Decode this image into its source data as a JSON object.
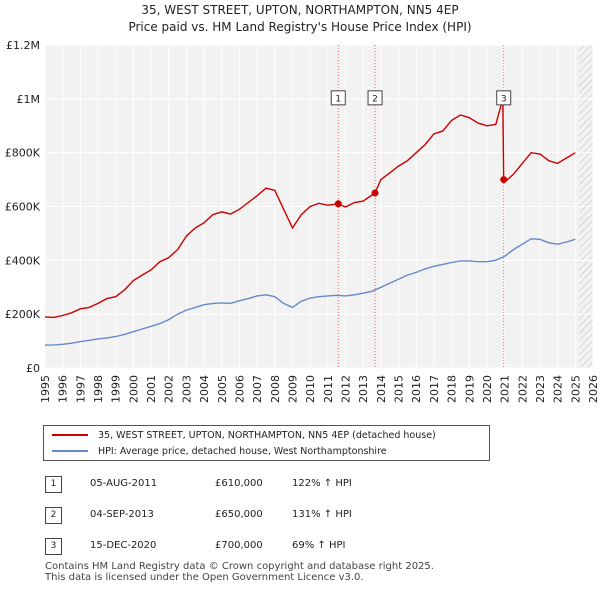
{
  "chart_data": {
    "type": "line",
    "title": "35, WEST STREET, UPTON, NORTHAMPTON, NN5 4EP",
    "subtitle": "Price paid vs. HM Land Registry's House Price Index (HPI)",
    "xlabel": "",
    "ylabel": "",
    "xlim": [
      1995,
      2026
    ],
    "ylim": [
      0,
      1200000
    ],
    "y_ticks": [
      {
        "value": 0,
        "label": "£0"
      },
      {
        "value": 200000,
        "label": "£200K"
      },
      {
        "value": 400000,
        "label": "£400K"
      },
      {
        "value": 600000,
        "label": "£600K"
      },
      {
        "value": 800000,
        "label": "£800K"
      },
      {
        "value": 1000000,
        "label": "£1M"
      },
      {
        "value": 1200000,
        "label": "£1.2M"
      }
    ],
    "x_ticks": [
      "1995",
      "1996",
      "1997",
      "1998",
      "1999",
      "2000",
      "2001",
      "2002",
      "2003",
      "2004",
      "2005",
      "2006",
      "2007",
      "2008",
      "2009",
      "2010",
      "2011",
      "2012",
      "2013",
      "2014",
      "2015",
      "2016",
      "2017",
      "2018",
      "2019",
      "2020",
      "2021",
      "2022",
      "2023",
      "2024",
      "2025",
      "2026"
    ],
    "grid": true,
    "series": [
      {
        "name": "35, WEST STREET, UPTON, NORTHAMPTON, NN5 4EP (detached house)",
        "color": "#cc0000",
        "x": [
          1995.0,
          1995.5,
          1996.0,
          1996.5,
          1997.0,
          1997.5,
          1998.0,
          1998.5,
          1999.0,
          1999.5,
          2000.0,
          2000.5,
          2001.0,
          2001.5,
          2002.0,
          2002.5,
          2003.0,
          2003.5,
          2004.0,
          2004.5,
          2005.0,
          2005.5,
          2006.0,
          2006.5,
          2007.0,
          2007.5,
          2008.0,
          2008.5,
          2009.0,
          2009.5,
          2010.0,
          2010.5,
          2011.0,
          2011.59,
          2012.0,
          2012.5,
          2013.0,
          2013.67,
          2014.0,
          2014.5,
          2015.0,
          2015.5,
          2016.0,
          2016.5,
          2017.0,
          2017.5,
          2018.0,
          2018.5,
          2019.0,
          2019.5,
          2020.0,
          2020.5,
          2020.9,
          2020.95,
          2021.0,
          2021.5,
          2022.0,
          2022.5,
          2023.0,
          2023.5,
          2024.0,
          2024.5,
          2025.0
        ],
        "values": [
          190000,
          188000,
          195000,
          205000,
          220000,
          225000,
          240000,
          258000,
          265000,
          290000,
          325000,
          345000,
          365000,
          395000,
          410000,
          440000,
          490000,
          520000,
          540000,
          570000,
          580000,
          572000,
          590000,
          615000,
          640000,
          668000,
          660000,
          590000,
          520000,
          570000,
          600000,
          612000,
          605000,
          610000,
          598000,
          615000,
          620000,
          650000,
          700000,
          725000,
          750000,
          770000,
          800000,
          830000,
          870000,
          880000,
          920000,
          940000,
          930000,
          910000,
          900000,
          905000,
          1000000,
          700000,
          690000,
          720000,
          760000,
          800000,
          795000,
          770000,
          760000,
          780000,
          800000
        ]
      },
      {
        "name": "HPI: Average price, detached house, West Northamptonshire",
        "color": "#6688cc",
        "x": [
          1995.0,
          1995.5,
          1996.0,
          1996.5,
          1997.0,
          1997.5,
          1998.0,
          1998.5,
          1999.0,
          1999.5,
          2000.0,
          2000.5,
          2001.0,
          2001.5,
          2002.0,
          2002.5,
          2003.0,
          2003.5,
          2004.0,
          2004.5,
          2005.0,
          2005.5,
          2006.0,
          2006.5,
          2007.0,
          2007.5,
          2008.0,
          2008.5,
          2009.0,
          2009.5,
          2010.0,
          2010.5,
          2011.0,
          2011.5,
          2012.0,
          2012.5,
          2013.0,
          2013.5,
          2014.0,
          2014.5,
          2015.0,
          2015.5,
          2016.0,
          2016.5,
          2017.0,
          2017.5,
          2018.0,
          2018.5,
          2019.0,
          2019.5,
          2020.0,
          2020.5,
          2021.0,
          2021.5,
          2022.0,
          2022.5,
          2023.0,
          2023.5,
          2024.0,
          2024.5,
          2025.0
        ],
        "values": [
          85000,
          86000,
          88000,
          92000,
          98000,
          103000,
          108000,
          112000,
          117000,
          125000,
          135000,
          145000,
          155000,
          165000,
          180000,
          200000,
          215000,
          225000,
          235000,
          240000,
          242000,
          240000,
          250000,
          258000,
          268000,
          272000,
          265000,
          240000,
          225000,
          248000,
          260000,
          265000,
          268000,
          270000,
          268000,
          272000,
          278000,
          285000,
          300000,
          315000,
          330000,
          345000,
          355000,
          368000,
          378000,
          385000,
          392000,
          398000,
          398000,
          395000,
          395000,
          400000,
          415000,
          440000,
          460000,
          480000,
          478000,
          465000,
          460000,
          468000,
          478000
        ]
      }
    ],
    "sale_markers": [
      {
        "label": "1",
        "x": 2011.59,
        "value": 610000
      },
      {
        "label": "2",
        "x": 2013.67,
        "value": 650000
      },
      {
        "label": "3",
        "x": 2020.95,
        "value": 700000
      }
    ],
    "legend_position": "below-chart"
  },
  "legend": [
    {
      "label": "35, WEST STREET, UPTON, NORTHAMPTON, NN5 4EP (detached house)",
      "color": "#cc0000"
    },
    {
      "label": "HPI: Average price, detached house, West Northamptonshire",
      "color": "#6688cc"
    }
  ],
  "sales": [
    {
      "num": "1",
      "date": "05-AUG-2011",
      "price": "£610,000",
      "hpi": "122% ↑ HPI"
    },
    {
      "num": "2",
      "date": "04-SEP-2013",
      "price": "£650,000",
      "hpi": "131% ↑ HPI"
    },
    {
      "num": "3",
      "date": "15-DEC-2020",
      "price": "£700,000",
      "hpi": "69% ↑ HPI"
    }
  ],
  "footer": {
    "line1": "Contains HM Land Registry data © Crown copyright and database right 2025.",
    "line2": "This data is licensed under the Open Government Licence v3.0."
  }
}
